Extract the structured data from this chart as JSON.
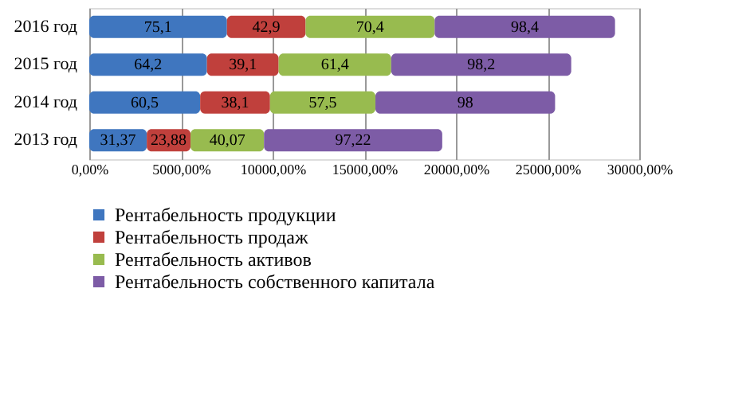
{
  "chart_data": {
    "type": "bar",
    "orientation": "horizontal",
    "stacked": true,
    "categories": [
      "2016  год",
      "2015  год",
      "2014  год",
      "2013  год"
    ],
    "series": [
      {
        "name": "Рентабельность продукции",
        "color": "#3f76bf",
        "values": [
          75.1,
          64.2,
          60.5,
          31.37
        ],
        "value_labels": [
          "75,1",
          "64,2",
          "60,5",
          "31,37"
        ]
      },
      {
        "name": "Рентабельность продаж",
        "color": "#c0403c",
        "values": [
          42.9,
          39.1,
          38.1,
          23.88
        ],
        "value_labels": [
          "42,9",
          "39,1",
          "38,1",
          "23,88"
        ]
      },
      {
        "name": "Рентабельность активов",
        "color": "#98bb4f",
        "values": [
          70.4,
          61.4,
          57.5,
          40.07
        ],
        "value_labels": [
          "70,4",
          "61,4",
          "57,5",
          "40,07"
        ]
      },
      {
        "name": "Рентабельность собственного капитала",
        "color": "#7d5ca6",
        "values": [
          98.4,
          98.2,
          98,
          97.22
        ],
        "value_labels": [
          "98,4",
          "98,2",
          "98",
          "97,22"
        ]
      }
    ],
    "xlim": [
      0,
      300
    ],
    "xticks": [
      {
        "value": 0,
        "label": "0,00%"
      },
      {
        "value": 50,
        "label": "5000,00%"
      },
      {
        "value": 100,
        "label": "10000,00%"
      },
      {
        "value": 150,
        "label": "15000,00%"
      },
      {
        "value": 200,
        "label": "20000,00%"
      },
      {
        "value": 250,
        "label": "25000,00%"
      },
      {
        "value": 300,
        "label": "30000,00%"
      }
    ],
    "grid": "x",
    "legend": "bottom"
  }
}
